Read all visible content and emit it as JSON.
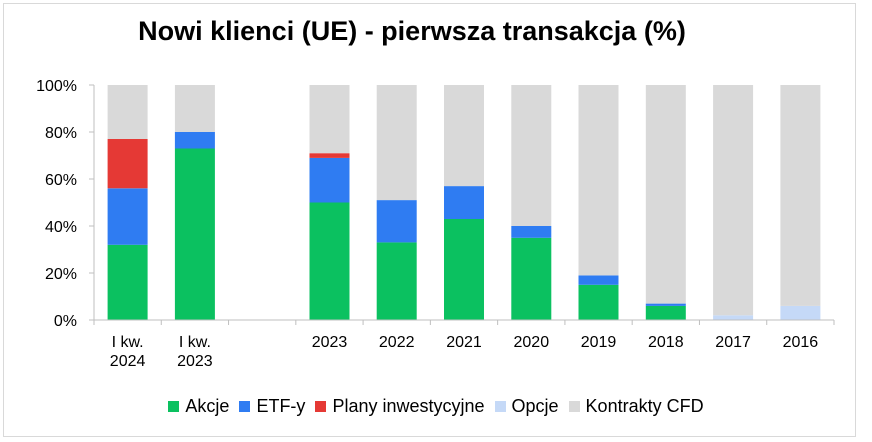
{
  "chart_data": {
    "type": "bar",
    "stacked": true,
    "title": "Nowi klienci (UE) - pierwsza transakcja (%)",
    "xlabel": "",
    "ylabel": "",
    "ylim": [
      0,
      100
    ],
    "y_ticks": [
      "0%",
      "20%",
      "40%",
      "60%",
      "80%",
      "100%"
    ],
    "y_tick_values": [
      0,
      20,
      40,
      60,
      80,
      100
    ],
    "grid": false,
    "legend_position": "bottom",
    "categories": [
      [
        "I kw.",
        "2024"
      ],
      [
        "I kw.",
        "2023"
      ],
      [
        ""
      ],
      [
        "2023"
      ],
      [
        "2022"
      ],
      [
        "2021"
      ],
      [
        "2020"
      ],
      [
        "2019"
      ],
      [
        "2018"
      ],
      [
        "2017"
      ],
      [
        "2016"
      ]
    ],
    "series": [
      {
        "name": "Akcje",
        "color": "#0bc160",
        "values": [
          32,
          73,
          0,
          50,
          33,
          43,
          35,
          15,
          6,
          0,
          0
        ]
      },
      {
        "name": "ETF-y",
        "color": "#2f7cf2",
        "values": [
          24,
          7,
          0,
          19,
          18,
          14,
          5,
          4,
          1,
          0,
          0
        ]
      },
      {
        "name": "Plany inwestycyjne",
        "color": "#e53935",
        "values": [
          21,
          0,
          0,
          2,
          0,
          0,
          0,
          0,
          0,
          0,
          0
        ]
      },
      {
        "name": "Opcje",
        "color": "#c5d9f7",
        "values": [
          0,
          0,
          0,
          0,
          0,
          0,
          0,
          0,
          0,
          2,
          6
        ]
      },
      {
        "name": "Kontrakty CFD",
        "color": "#d9d9d9",
        "values": [
          23,
          20,
          0,
          29,
          49,
          43,
          60,
          81,
          93,
          98,
          94
        ]
      }
    ]
  }
}
